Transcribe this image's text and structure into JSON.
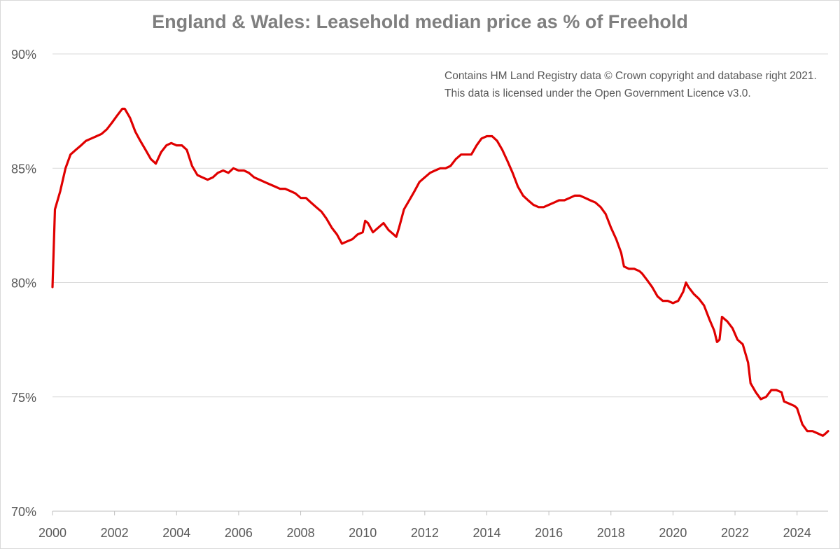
{
  "chart_data": {
    "type": "line",
    "title": "England & Wales: Leasehold median price as % of Freehold",
    "annotation": [
      "Contains HM Land Registry data © Crown copyright and database right 2021.",
      "This data is licensed under the Open Government Licence v3.0."
    ],
    "xlabel": "",
    "ylabel": "",
    "xlim": [
      2000,
      2025
    ],
    "ylim": [
      70,
      90
    ],
    "x_ticks": [
      2000,
      2002,
      2004,
      2006,
      2008,
      2010,
      2012,
      2014,
      2016,
      2018,
      2020,
      2022,
      2024
    ],
    "x_tick_labels": [
      "2000",
      "2002",
      "2004",
      "2006",
      "2008",
      "2010",
      "2012",
      "2014",
      "2016",
      "2018",
      "2020",
      "2022",
      "2024"
    ],
    "y_ticks": [
      70,
      75,
      80,
      85,
      90
    ],
    "y_tick_labels": [
      "70%",
      "75%",
      "80%",
      "85%",
      "90%"
    ],
    "grid": "horizontal",
    "line_color": "#e00000",
    "series": [
      {
        "name": "Leasehold median price as % of Freehold",
        "points": [
          [
            2000.0,
            79.8
          ],
          [
            2000.08,
            83.2
          ],
          [
            2000.25,
            84.0
          ],
          [
            2000.42,
            85.0
          ],
          [
            2000.58,
            85.6
          ],
          [
            2000.75,
            85.8
          ],
          [
            2000.92,
            86.0
          ],
          [
            2001.08,
            86.2
          ],
          [
            2001.25,
            86.3
          ],
          [
            2001.42,
            86.4
          ],
          [
            2001.58,
            86.5
          ],
          [
            2001.75,
            86.7
          ],
          [
            2001.92,
            87.0
          ],
          [
            2002.08,
            87.3
          ],
          [
            2002.25,
            87.6
          ],
          [
            2002.33,
            87.6
          ],
          [
            2002.5,
            87.2
          ],
          [
            2002.67,
            86.6
          ],
          [
            2002.83,
            86.2
          ],
          [
            2003.0,
            85.8
          ],
          [
            2003.17,
            85.4
          ],
          [
            2003.33,
            85.2
          ],
          [
            2003.5,
            85.7
          ],
          [
            2003.67,
            86.0
          ],
          [
            2003.83,
            86.1
          ],
          [
            2004.0,
            86.0
          ],
          [
            2004.17,
            86.0
          ],
          [
            2004.33,
            85.8
          ],
          [
            2004.5,
            85.1
          ],
          [
            2004.67,
            84.7
          ],
          [
            2004.83,
            84.6
          ],
          [
            2005.0,
            84.5
          ],
          [
            2005.17,
            84.6
          ],
          [
            2005.33,
            84.8
          ],
          [
            2005.5,
            84.9
          ],
          [
            2005.67,
            84.8
          ],
          [
            2005.83,
            85.0
          ],
          [
            2006.0,
            84.9
          ],
          [
            2006.17,
            84.9
          ],
          [
            2006.33,
            84.8
          ],
          [
            2006.5,
            84.6
          ],
          [
            2006.67,
            84.5
          ],
          [
            2006.83,
            84.4
          ],
          [
            2007.0,
            84.3
          ],
          [
            2007.17,
            84.2
          ],
          [
            2007.33,
            84.1
          ],
          [
            2007.5,
            84.1
          ],
          [
            2007.67,
            84.0
          ],
          [
            2007.83,
            83.9
          ],
          [
            2008.0,
            83.7
          ],
          [
            2008.17,
            83.7
          ],
          [
            2008.33,
            83.5
          ],
          [
            2008.5,
            83.3
          ],
          [
            2008.67,
            83.1
          ],
          [
            2008.83,
            82.8
          ],
          [
            2009.0,
            82.4
          ],
          [
            2009.17,
            82.1
          ],
          [
            2009.33,
            81.7
          ],
          [
            2009.5,
            81.8
          ],
          [
            2009.67,
            81.9
          ],
          [
            2009.83,
            82.1
          ],
          [
            2010.0,
            82.2
          ],
          [
            2010.08,
            82.7
          ],
          [
            2010.17,
            82.6
          ],
          [
            2010.33,
            82.2
          ],
          [
            2010.5,
            82.4
          ],
          [
            2010.67,
            82.6
          ],
          [
            2010.83,
            82.3
          ],
          [
            2011.0,
            82.1
          ],
          [
            2011.08,
            82.0
          ],
          [
            2011.17,
            82.4
          ],
          [
            2011.33,
            83.2
          ],
          [
            2011.5,
            83.6
          ],
          [
            2011.67,
            84.0
          ],
          [
            2011.83,
            84.4
          ],
          [
            2012.0,
            84.6
          ],
          [
            2012.17,
            84.8
          ],
          [
            2012.33,
            84.9
          ],
          [
            2012.5,
            85.0
          ],
          [
            2012.67,
            85.0
          ],
          [
            2012.83,
            85.1
          ],
          [
            2013.0,
            85.4
          ],
          [
            2013.17,
            85.6
          ],
          [
            2013.33,
            85.6
          ],
          [
            2013.5,
            85.6
          ],
          [
            2013.67,
            86.0
          ],
          [
            2013.83,
            86.3
          ],
          [
            2014.0,
            86.4
          ],
          [
            2014.17,
            86.4
          ],
          [
            2014.33,
            86.2
          ],
          [
            2014.5,
            85.8
          ],
          [
            2014.67,
            85.3
          ],
          [
            2014.83,
            84.8
          ],
          [
            2015.0,
            84.2
          ],
          [
            2015.17,
            83.8
          ],
          [
            2015.33,
            83.6
          ],
          [
            2015.5,
            83.4
          ],
          [
            2015.67,
            83.3
          ],
          [
            2015.83,
            83.3
          ],
          [
            2016.0,
            83.4
          ],
          [
            2016.17,
            83.5
          ],
          [
            2016.33,
            83.6
          ],
          [
            2016.5,
            83.6
          ],
          [
            2016.67,
            83.7
          ],
          [
            2016.83,
            83.8
          ],
          [
            2017.0,
            83.8
          ],
          [
            2017.17,
            83.7
          ],
          [
            2017.33,
            83.6
          ],
          [
            2017.5,
            83.5
          ],
          [
            2017.67,
            83.3
          ],
          [
            2017.83,
            83.0
          ],
          [
            2018.0,
            82.4
          ],
          [
            2018.17,
            81.9
          ],
          [
            2018.33,
            81.3
          ],
          [
            2018.42,
            80.7
          ],
          [
            2018.58,
            80.6
          ],
          [
            2018.75,
            80.6
          ],
          [
            2018.92,
            80.5
          ],
          [
            2019.0,
            80.4
          ],
          [
            2019.17,
            80.1
          ],
          [
            2019.33,
            79.8
          ],
          [
            2019.5,
            79.4
          ],
          [
            2019.67,
            79.2
          ],
          [
            2019.83,
            79.2
          ],
          [
            2020.0,
            79.1
          ],
          [
            2020.17,
            79.2
          ],
          [
            2020.33,
            79.6
          ],
          [
            2020.42,
            80.0
          ],
          [
            2020.5,
            79.8
          ],
          [
            2020.67,
            79.5
          ],
          [
            2020.83,
            79.3
          ],
          [
            2021.0,
            79.0
          ],
          [
            2021.17,
            78.4
          ],
          [
            2021.33,
            77.9
          ],
          [
            2021.42,
            77.4
          ],
          [
            2021.5,
            77.5
          ],
          [
            2021.58,
            78.5
          ],
          [
            2021.75,
            78.3
          ],
          [
            2021.92,
            78.0
          ],
          [
            2022.08,
            77.5
          ],
          [
            2022.25,
            77.3
          ],
          [
            2022.42,
            76.5
          ],
          [
            2022.5,
            75.6
          ],
          [
            2022.67,
            75.2
          ],
          [
            2022.83,
            74.9
          ],
          [
            2023.0,
            75.0
          ],
          [
            2023.17,
            75.3
          ],
          [
            2023.33,
            75.3
          ],
          [
            2023.5,
            75.2
          ],
          [
            2023.58,
            74.8
          ],
          [
            2023.75,
            74.7
          ],
          [
            2023.92,
            74.6
          ],
          [
            2024.0,
            74.5
          ],
          [
            2024.17,
            73.8
          ],
          [
            2024.33,
            73.5
          ],
          [
            2024.5,
            73.5
          ],
          [
            2024.67,
            73.4
          ],
          [
            2024.83,
            73.3
          ],
          [
            2024.92,
            73.4
          ],
          [
            2025.0,
            73.5
          ]
        ]
      }
    ]
  }
}
